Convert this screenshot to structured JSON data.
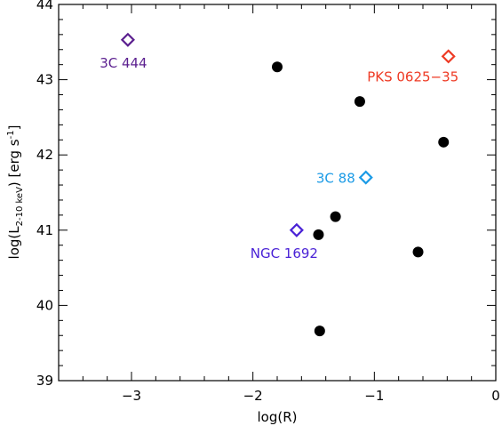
{
  "chart_data": {
    "type": "scatter",
    "xlabel": "log(R)",
    "ylabel": {
      "prefix": "log(L",
      "subscript": "2-10 keV",
      "suffix": ") [erg s",
      "superscript": "-1",
      "close": "]"
    },
    "xlim": [
      -3.6,
      0
    ],
    "ylim": [
      39,
      44
    ],
    "xticks": [
      -3,
      -2,
      -1,
      0
    ],
    "xtick_labels": [
      "−3",
      "−2",
      "−1",
      "0"
    ],
    "yticks": [
      39,
      40,
      41,
      42,
      43,
      44
    ],
    "ytick_labels": [
      "39",
      "40",
      "41",
      "42",
      "43",
      "44"
    ],
    "x_minor_step": 0.2,
    "y_minor_step": 0.2,
    "grid": false,
    "series": [
      {
        "marker": "filled-circle",
        "color": "#000000",
        "points": [
          {
            "x": -1.8,
            "y": 43.17
          },
          {
            "x": -1.12,
            "y": 42.71
          },
          {
            "x": -0.43,
            "y": 42.17
          },
          {
            "x": -1.32,
            "y": 41.18
          },
          {
            "x": -1.46,
            "y": 40.94
          },
          {
            "x": -0.64,
            "y": 40.71
          },
          {
            "x": -1.45,
            "y": 39.66
          }
        ]
      },
      {
        "marker": "open-diamond",
        "points": [
          {
            "x": -3.03,
            "y": 43.53,
            "color": "#5b1f8f",
            "label": "3C 444"
          },
          {
            "x": -0.39,
            "y": 43.31,
            "color": "#ee3a24",
            "label": "PKS 0625−35"
          },
          {
            "x": -1.07,
            "y": 41.7,
            "color": "#1c9be6",
            "label": "3C 88"
          },
          {
            "x": -1.64,
            "y": 41.0,
            "color": "#4a22d6",
            "label": "NGC 1692"
          }
        ]
      }
    ]
  }
}
